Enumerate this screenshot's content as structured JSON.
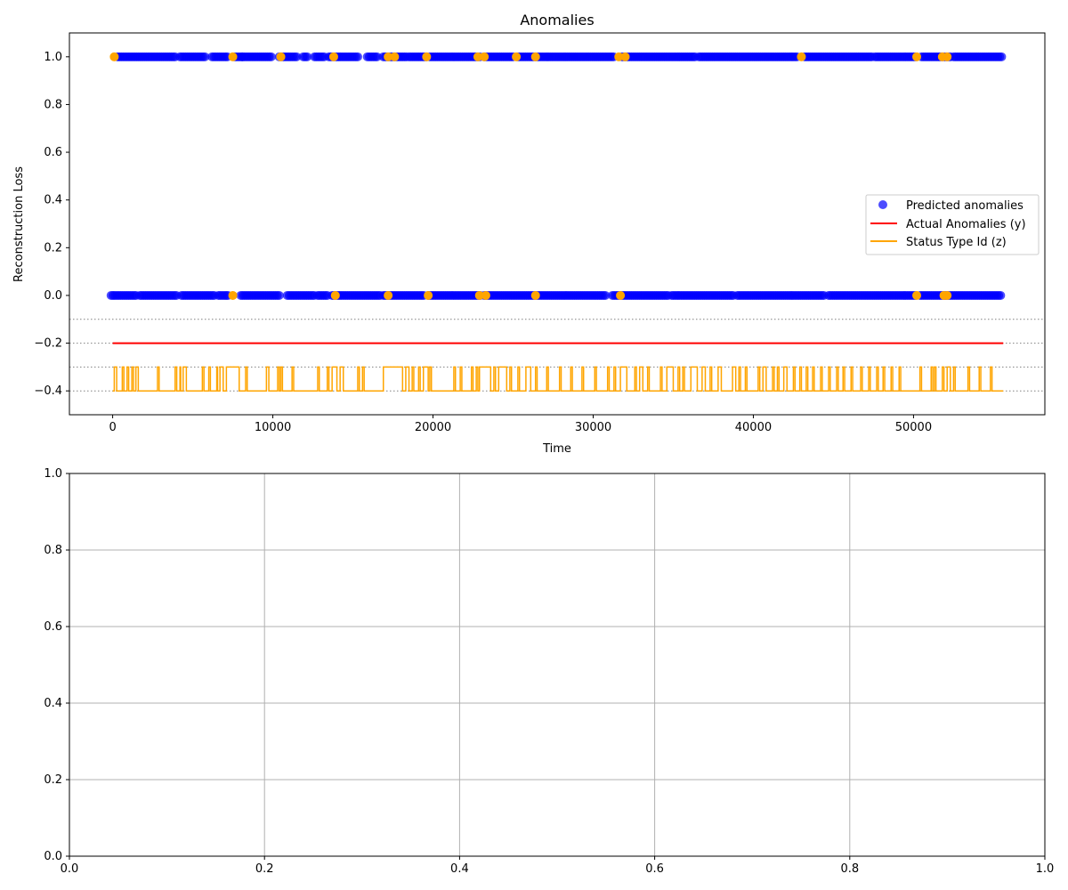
{
  "chart_data": [
    {
      "type": "scatter",
      "title": "Anomalies",
      "xlabel": "Time",
      "ylabel": "Reconstruction Loss",
      "xlim": [
        -2700,
        58200
      ],
      "ylim": [
        -0.5,
        1.1
      ],
      "xticks": [
        0,
        10000,
        20000,
        30000,
        40000,
        50000
      ],
      "xtick_labels": [
        "0",
        "10000",
        "20000",
        "30000",
        "40000",
        "50000"
      ],
      "yticks": [
        1.0,
        0.8,
        0.6,
        0.4,
        0.2,
        0.0,
        -0.2,
        -0.4
      ],
      "ytick_labels": [
        "1.0",
        "0.8",
        "0.6",
        "0.4",
        "0.2",
        "0.0",
        "−0.2",
        "−0.4"
      ],
      "grid": false,
      "legend_location": "center-right",
      "reference_lines": [
        -0.1,
        -0.2,
        -0.3,
        -0.4
      ],
      "series": [
        {
          "name": "Predicted anomalies",
          "kind": "scatter",
          "color": "#0000ff",
          "opacity": 0.7,
          "points_at_1": [
            [
              300,
              1400
            ],
            [
              1500,
              4000
            ],
            [
              4200,
              5800
            ],
            [
              6200,
              7200
            ],
            [
              7600,
              8100
            ],
            [
              8100,
              9900
            ],
            [
              10400,
              11500
            ],
            [
              11900,
              12200
            ],
            [
              12600,
              13300
            ],
            [
              13500,
              15300
            ],
            [
              15900,
              16600
            ],
            [
              16900,
              18400
            ],
            [
              18500,
              19600
            ],
            [
              19800,
              23000
            ],
            [
              23200,
              25000
            ],
            [
              25300,
              27200
            ],
            [
              27200,
              31300
            ],
            [
              31800,
              36400
            ],
            [
              36600,
              42800
            ],
            [
              43200,
              47500
            ],
            [
              47600,
              50200
            ],
            [
              50500,
              52400
            ],
            [
              52500,
              55500
            ]
          ],
          "points_at_0": [
            [
              -100,
              1500
            ],
            [
              1700,
              4000
            ],
            [
              4300,
              6400
            ],
            [
              6600,
              7200
            ],
            [
              8000,
              10500
            ],
            [
              10900,
              12600
            ],
            [
              12800,
              13500
            ],
            [
              13700,
              16800
            ],
            [
              16900,
              19500
            ],
            [
              19700,
              23000
            ],
            [
              23200,
              30800
            ],
            [
              31200,
              34700
            ],
            [
              34900,
              38800
            ],
            [
              39000,
              44500
            ],
            [
              44700,
              50100
            ],
            [
              50400,
              55500
            ]
          ]
        },
        {
          "name": "Actual Anomalies (y)",
          "kind": "line",
          "color": "#ff0000",
          "x": [
            0,
            55600
          ],
          "y": [
            -0.2,
            -0.2
          ]
        },
        {
          "name": "Status Type Id (z)",
          "kind": "step",
          "color": "#ffa500",
          "baseline": -0.4,
          "high": -0.3,
          "high_intervals": [
            [
              100,
              250
            ],
            [
              600,
              700
            ],
            [
              900,
              1000
            ],
            [
              1200,
              1300
            ],
            [
              1450,
              1600
            ],
            [
              2800,
              2900
            ],
            [
              3900,
              4000
            ],
            [
              4200,
              4250
            ],
            [
              4400,
              4600
            ],
            [
              5600,
              5700
            ],
            [
              6000,
              6100
            ],
            [
              6500,
              6550
            ],
            [
              6700,
              6900
            ],
            [
              7100,
              7900
            ],
            [
              8300,
              8400
            ],
            [
              9600,
              9750
            ],
            [
              10300,
              10400
            ],
            [
              10500,
              10600
            ],
            [
              11200,
              11300
            ],
            [
              12800,
              12900
            ],
            [
              13400,
              13500
            ],
            [
              13700,
              14000
            ],
            [
              14200,
              14400
            ],
            [
              15300,
              15400
            ],
            [
              15600,
              15700
            ],
            [
              16900,
              18100
            ],
            [
              18300,
              18500
            ],
            [
              18700,
              18800
            ],
            [
              19100,
              19200
            ],
            [
              19400,
              19700
            ],
            [
              19800,
              19900
            ],
            [
              21300,
              21400
            ],
            [
              21700,
              21800
            ],
            [
              22400,
              22500
            ],
            [
              22700,
              22800
            ],
            [
              22900,
              23600
            ],
            [
              23800,
              23900
            ],
            [
              24100,
              24600
            ],
            [
              24800,
              24900
            ],
            [
              25300,
              25400
            ],
            [
              25800,
              26100
            ],
            [
              26400,
              26500
            ],
            [
              27100,
              27200
            ],
            [
              27900,
              28000
            ],
            [
              28600,
              28700
            ],
            [
              29300,
              29400
            ],
            [
              30100,
              30200
            ],
            [
              30900,
              31000
            ],
            [
              31300,
              31400
            ],
            [
              31700,
              32100
            ],
            [
              32600,
              32700
            ],
            [
              32900,
              33100
            ],
            [
              33400,
              33500
            ],
            [
              34200,
              34300
            ],
            [
              34600,
              35000
            ],
            [
              35300,
              35400
            ],
            [
              35600,
              35700
            ],
            [
              36100,
              36500
            ],
            [
              36800,
              37000
            ],
            [
              37300,
              37400
            ],
            [
              37800,
              38000
            ],
            [
              38700,
              38900
            ],
            [
              39100,
              39200
            ],
            [
              39500,
              39600
            ],
            [
              40300,
              40400
            ],
            [
              40600,
              40800
            ],
            [
              41200,
              41300
            ],
            [
              41500,
              41600
            ],
            [
              41900,
              42100
            ],
            [
              42500,
              42600
            ],
            [
              42900,
              43000
            ],
            [
              43300,
              43400
            ],
            [
              43700,
              43800
            ],
            [
              44200,
              44300
            ],
            [
              44700,
              44800
            ],
            [
              45200,
              45300
            ],
            [
              45600,
              45700
            ],
            [
              46100,
              46200
            ],
            [
              46700,
              46800
            ],
            [
              47200,
              47300
            ],
            [
              47700,
              47800
            ],
            [
              48100,
              48200
            ],
            [
              48600,
              48700
            ],
            [
              49100,
              49200
            ],
            [
              50400,
              50500
            ],
            [
              51100,
              51200
            ],
            [
              51300,
              51400
            ],
            [
              51800,
              51900
            ],
            [
              52100,
              52300
            ],
            [
              52500,
              52600
            ],
            [
              53400,
              53500
            ],
            [
              54100,
              54200
            ],
            [
              54800,
              54900
            ]
          ]
        }
      ],
      "highlight_points": {
        "color": "#ffa500",
        "at_1": [
          100,
          7500,
          10500,
          13800,
          17200,
          17600,
          19600,
          22800,
          23200,
          25200,
          26400,
          31600,
          32000,
          43000,
          50200,
          51800,
          52100
        ],
        "at_0": [
          7500,
          13900,
          17200,
          19700,
          22900,
          23300,
          26400,
          31700,
          50200,
          51900,
          52100
        ]
      }
    },
    {
      "type": "line",
      "title": "",
      "xlabel": "",
      "ylabel": "",
      "xlim": [
        0.0,
        1.0
      ],
      "ylim": [
        0.0,
        1.0
      ],
      "xticks": [
        0.0,
        0.2,
        0.4,
        0.6,
        0.8,
        1.0
      ],
      "xtick_labels": [
        "0.0",
        "0.2",
        "0.4",
        "0.6",
        "0.8",
        "1.0"
      ],
      "yticks": [
        0.0,
        0.2,
        0.4,
        0.6,
        0.8,
        1.0
      ],
      "ytick_labels": [
        "0.0",
        "0.2",
        "0.4",
        "0.6",
        "0.8",
        "1.0"
      ],
      "grid": true,
      "series": []
    }
  ]
}
